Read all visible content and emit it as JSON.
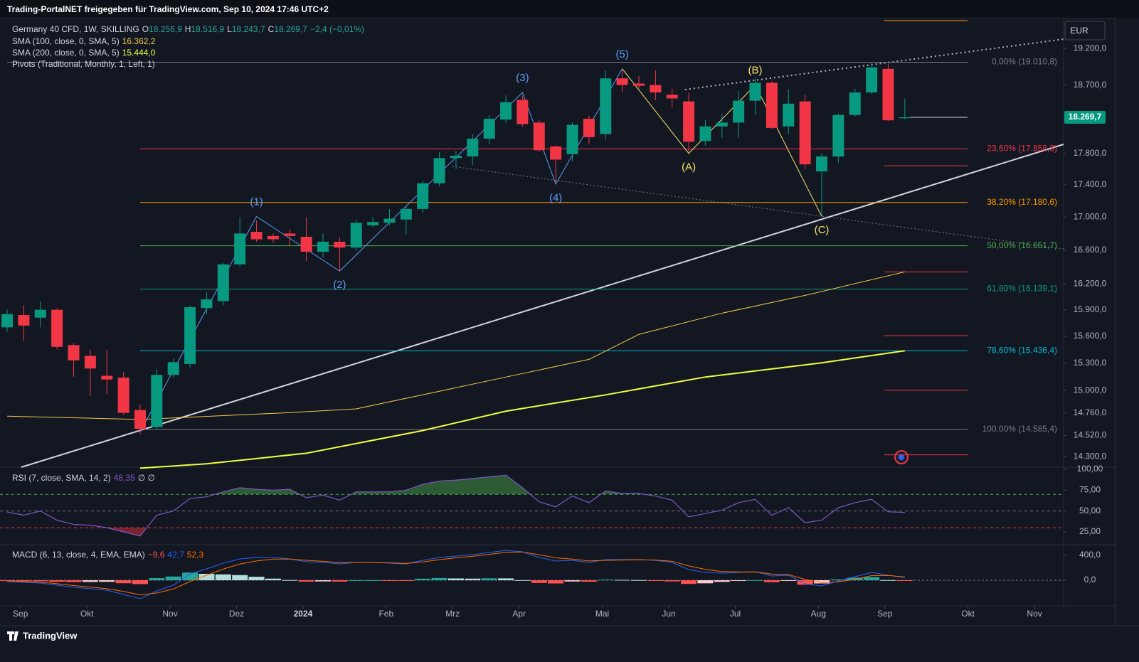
{
  "header": "Trading-PortalNET freigegeben für TradingView.com, Sep 10, 2024 17:46 UTC+2",
  "footer": "TradingView",
  "currency": "EUR",
  "chart_data": {
    "type": "candlestick",
    "title": "Germany 40 CFD, 1W, SKILLING",
    "ohlc_legend": [
      {
        "key": "O",
        "text": "18.256,9"
      },
      {
        "key": "H",
        "text": "18.516,9"
      },
      {
        "key": "L",
        "text": "18.243,7"
      },
      {
        "key": "C",
        "text": "18.269,7"
      }
    ],
    "change": "−2,4 (−0,01%)",
    "up_color": "#089981",
    "down_color": "#f23645",
    "open": [
      15700,
      15840,
      15810,
      15900,
      15500,
      15380,
      15160,
      15140,
      14790,
      14610,
      15170,
      15290,
      15920,
      16000,
      16430,
      16820,
      16770,
      16800,
      16760,
      16580,
      16700,
      16630,
      16900,
      16930,
      16970,
      17100,
      17420,
      17740,
      17760,
      17990,
      18240,
      18500,
      18200,
      17890,
      17790,
      18250,
      18050,
      18790,
      18720,
      18700,
      18570,
      18480,
      17960,
      18150,
      18200,
      18490,
      18730,
      18150,
      18480,
      17570,
      17760,
      18300,
      18600,
      18920,
      18256.9
    ],
    "high": [
      15900,
      15950,
      16000,
      15920,
      15520,
      15450,
      15450,
      15200,
      14850,
      15230,
      15350,
      15950,
      16100,
      16450,
      17000,
      16960,
      16800,
      16850,
      17000,
      16800,
      16750,
      16970,
      17000,
      17100,
      17150,
      17450,
      17820,
      17830,
      18050,
      18300,
      18560,
      18560,
      18230,
      17900,
      18200,
      18290,
      18900,
      18900,
      18820,
      18900,
      18650,
      18600,
      18230,
      18320,
      18620,
      18800,
      18750,
      18640,
      18570,
      17800,
      18320,
      18650,
      19000,
      18990,
      18516.9
    ],
    "low": [
      15650,
      15550,
      15700,
      15450,
      15150,
      14940,
      14960,
      14740,
      14530,
      14580,
      15140,
      15250,
      15850,
      15950,
      16400,
      16700,
      16690,
      16650,
      16470,
      16510,
      16350,
      16590,
      16880,
      16900,
      16790,
      17050,
      17380,
      17600,
      17650,
      17920,
      18190,
      18150,
      17820,
      17420,
      17700,
      17920,
      17980,
      18600,
      18650,
      18500,
      18400,
      17820,
      17900,
      18000,
      18000,
      18300,
      18120,
      18050,
      17600,
      17020,
      17680,
      18280,
      18580,
      18220,
      18243.7
    ],
    "close": [
      15850,
      15720,
      15900,
      15480,
      15330,
      15240,
      15120,
      14760,
      14590,
      15170,
      15310,
      15930,
      16020,
      16430,
      16800,
      16730,
      16730,
      16770,
      16580,
      16700,
      16630,
      16930,
      16940,
      16980,
      17100,
      17420,
      17740,
      17770,
      17990,
      18250,
      18470,
      18180,
      17840,
      17720,
      18170,
      18010,
      18790,
      18700,
      18690,
      18600,
      18520,
      17950,
      18150,
      18200,
      18490,
      18730,
      18130,
      18450,
      17660,
      17760,
      18300,
      18600,
      18940,
      18230,
      18269.7
    ],
    "log_scale": true,
    "ylim": [
      14200,
      19620
    ],
    "yticks": [
      {
        "value": 19200,
        "label": "19.200,0"
      },
      {
        "value": 18700,
        "label": "18.700,0"
      },
      {
        "value": 17800,
        "label": "17.800,0"
      },
      {
        "value": 17400,
        "label": "17.400,0"
      },
      {
        "value": 17000,
        "label": "17.000,0"
      },
      {
        "value": 16600,
        "label": "16.600,0"
      },
      {
        "value": 16200,
        "label": "16.200,0"
      },
      {
        "value": 15900,
        "label": "15.900,0"
      },
      {
        "value": 15600,
        "label": "15.600,0"
      },
      {
        "value": 15300,
        "label": "15.300,0"
      },
      {
        "value": 15000,
        "label": "15.000,0"
      },
      {
        "value": 14760,
        "label": "14.760,0"
      },
      {
        "value": 14520,
        "label": "14.520,0"
      },
      {
        "value": 14300,
        "label": "14.300,0"
      }
    ],
    "xlim": [
      -0.43,
      63.55
    ],
    "xticks": [
      {
        "value": 0.8,
        "label": "Sep"
      },
      {
        "value": 4.8,
        "label": "Okt"
      },
      {
        "value": 9.8,
        "label": "Nov"
      },
      {
        "value": 13.8,
        "label": "Dez"
      },
      {
        "value": 17.8,
        "label": "2024"
      },
      {
        "value": 22.8,
        "label": "Feb"
      },
      {
        "value": 26.8,
        "label": "Mrz"
      },
      {
        "value": 30.8,
        "label": "Apr"
      },
      {
        "value": 35.8,
        "label": "Mai"
      },
      {
        "value": 39.8,
        "label": "Jun"
      },
      {
        "value": 43.8,
        "label": "Jul"
      },
      {
        "value": 48.8,
        "label": "Aug"
      },
      {
        "value": 52.8,
        "label": "Sep"
      },
      {
        "value": 57.8,
        "label": "Okt"
      },
      {
        "value": 61.8,
        "label": "Nov"
      }
    ],
    "last_price": {
      "value": 18269.7,
      "label": "18.269,7"
    },
    "series": [
      {
        "name": "SMA (100, close, 0, SMA, 5)",
        "color": "#f2c94c",
        "width": 1,
        "x": [
          0,
          8,
          17,
          21,
          26,
          31,
          35,
          38,
          43,
          48,
          54
        ],
        "values": [
          14725,
          14690,
          14763,
          14803,
          14992,
          15185,
          15341,
          15620,
          15861,
          16066,
          16341
        ],
        "value_label": "16.362,2"
      },
      {
        "name": "SMA (200, close, 0, SMA, 5)",
        "color": "#eeff41",
        "width": 2,
        "x": [
          8,
          12,
          18,
          25,
          30,
          36,
          42,
          49,
          54
        ],
        "values": [
          14183,
          14227,
          14336,
          14573,
          14778,
          14953,
          15147,
          15303,
          15437
        ],
        "value_label": "15.444,0"
      }
    ],
    "pivots_legend": "Pivots (Traditional, Monthly, 1, Left, 1)",
    "pivots": [
      {
        "value": 19590,
        "color": "#ff9800"
      },
      {
        "value": 17641,
        "color": "#f23645"
      },
      {
        "value": 16341,
        "color": "#f23645"
      },
      {
        "value": 15606,
        "color": "#f23645"
      },
      {
        "value": 15003,
        "color": "#f23645"
      },
      {
        "value": 14320,
        "color": "#f23645"
      }
    ],
    "fib_levels": [
      {
        "value": 19010.8,
        "label": "0,00% (19.010,8)",
        "color": "#787b86"
      },
      {
        "value": 17858.3,
        "label": "23,60% (17.858,3)",
        "color": "#f23645"
      },
      {
        "value": 17180.6,
        "label": "38,20% (17.180,6)",
        "color": "#ff9800"
      },
      {
        "value": 16651.7,
        "label": "50,00% (16.651,7)",
        "color": "#4caf50"
      },
      {
        "value": 16139.1,
        "label": "61,80% (16.139,1)",
        "color": "#089981"
      },
      {
        "value": 15436.4,
        "label": "78,60% (15.436,4)",
        "color": "#00bcd4"
      },
      {
        "value": 14585.4,
        "label": "100,00% (14.585,4)",
        "color": "#787b86"
      }
    ],
    "waves": [
      {
        "color": "#5b9cf6",
        "points": [
          {
            "x": 8,
            "value": 14560,
            "label": null,
            "pos": "below"
          },
          {
            "x": 15,
            "value": 17007,
            "label": "(1)",
            "pos": "above"
          },
          {
            "x": 20,
            "value": 16350,
            "label": "(2)",
            "pos": "below"
          },
          {
            "x": 31,
            "value": 18600,
            "label": "(3)",
            "pos": "above"
          },
          {
            "x": 33,
            "value": 17410,
            "label": "(4)",
            "pos": "below"
          },
          {
            "x": 37,
            "value": 18920,
            "label": "(5)",
            "pos": "above"
          }
        ]
      },
      {
        "color": "#f7e36b",
        "points": [
          {
            "x": 37,
            "value": 18920,
            "label": null,
            "pos": "above"
          },
          {
            "x": 41,
            "value": 17800,
            "label": "(A)",
            "pos": "below"
          },
          {
            "x": 45,
            "value": 18700,
            "label": "(B)",
            "pos": "above"
          },
          {
            "x": 49,
            "value": 17010,
            "label": "(C)",
            "pos": "below"
          }
        ]
      }
    ]
  },
  "rsi": {
    "name": "RSI (7, close, SMA, 14, 2)",
    "color": "#7e57c2",
    "extra": "∅ ∅",
    "values": [
      48.8,
      45,
      50,
      39,
      34,
      33,
      30,
      25,
      20,
      45,
      50,
      65,
      67,
      73,
      78,
      76,
      75,
      76,
      66,
      69,
      63,
      73,
      73,
      73,
      75,
      82,
      86,
      87,
      89,
      91,
      93,
      78,
      61,
      55,
      68,
      60,
      74,
      71,
      71,
      68,
      63,
      43,
      47,
      51,
      60,
      64,
      45,
      54,
      36,
      39,
      54,
      60,
      64,
      49,
      48.35
    ],
    "value_label": "48,35",
    "ylim": [
      10.5,
      101.7
    ],
    "yticks": [
      {
        "value": 100,
        "label": "100,00"
      },
      {
        "value": 75,
        "label": "75,00"
      },
      {
        "value": 50,
        "label": "50,00"
      },
      {
        "value": 25,
        "label": "25,00"
      }
    ],
    "levels": [
      {
        "value": 70,
        "color": "#4caf50"
      },
      {
        "value": 50,
        "color": "#787b86"
      },
      {
        "value": 30,
        "color": "#f23645"
      }
    ]
  },
  "macd": {
    "name": "MACD (6, 13, close, 4, EMA, EMA)",
    "histogram": [
      -13,
      -14,
      -16,
      -25,
      -29,
      -27,
      -25,
      -48,
      -62,
      34,
      60,
      123,
      103,
      94,
      83,
      56,
      26,
      3,
      -23,
      -19,
      -22,
      1,
      1,
      -6,
      -7,
      25,
      36,
      29,
      26,
      31,
      30,
      2,
      -44,
      -51,
      -20,
      -24,
      11,
      6,
      3,
      -5,
      -19,
      -59,
      -49,
      -26,
      -7,
      2,
      -31,
      -10,
      -72,
      -51,
      14,
      42,
      51,
      2,
      -9.6
    ],
    "macd": [
      -23,
      -34,
      -46,
      -80,
      -114,
      -137,
      -160,
      -228,
      -297,
      -171,
      -80,
      103,
      183,
      274,
      343,
      366,
      366,
      343,
      297,
      286,
      263,
      286,
      286,
      274,
      263,
      320,
      366,
      389,
      411,
      446,
      480,
      457,
      366,
      309,
      320,
      286,
      331,
      331,
      331,
      320,
      286,
      171,
      126,
      114,
      126,
      137,
      69,
      80,
      -57,
      -91,
      -11,
      57,
      126,
      80,
      42.7
    ],
    "signal": [
      -10,
      -20,
      -30,
      -55,
      -85,
      -110,
      -135,
      -180,
      -235,
      -205,
      -140,
      -20,
      80,
      180,
      260,
      310,
      340,
      340,
      320,
      305,
      285,
      285,
      285,
      280,
      270,
      295,
      330,
      360,
      385,
      415,
      450,
      455,
      410,
      360,
      340,
      310,
      320,
      325,
      328,
      325,
      305,
      230,
      175,
      140,
      133,
      135,
      100,
      90,
      15,
      -40,
      -25,
      15,
      75,
      78,
      52.3
    ],
    "value_labels": {
      "histogram": "−9,6",
      "macd": "42,7",
      "signal": "52,3"
    },
    "colors": {
      "macd": "#2962ff",
      "signal": "#ff6d00",
      "hist_up": "#26a69a",
      "hist_up_weak": "#b2dfdb",
      "hist_down": "#ff5252",
      "hist_down_weak": "#ffcdd2"
    },
    "ylim": [
      -411,
      560
    ],
    "yticks": [
      {
        "value": 400,
        "label": "400,0"
      },
      {
        "value": 0,
        "label": "0,0"
      }
    ]
  }
}
